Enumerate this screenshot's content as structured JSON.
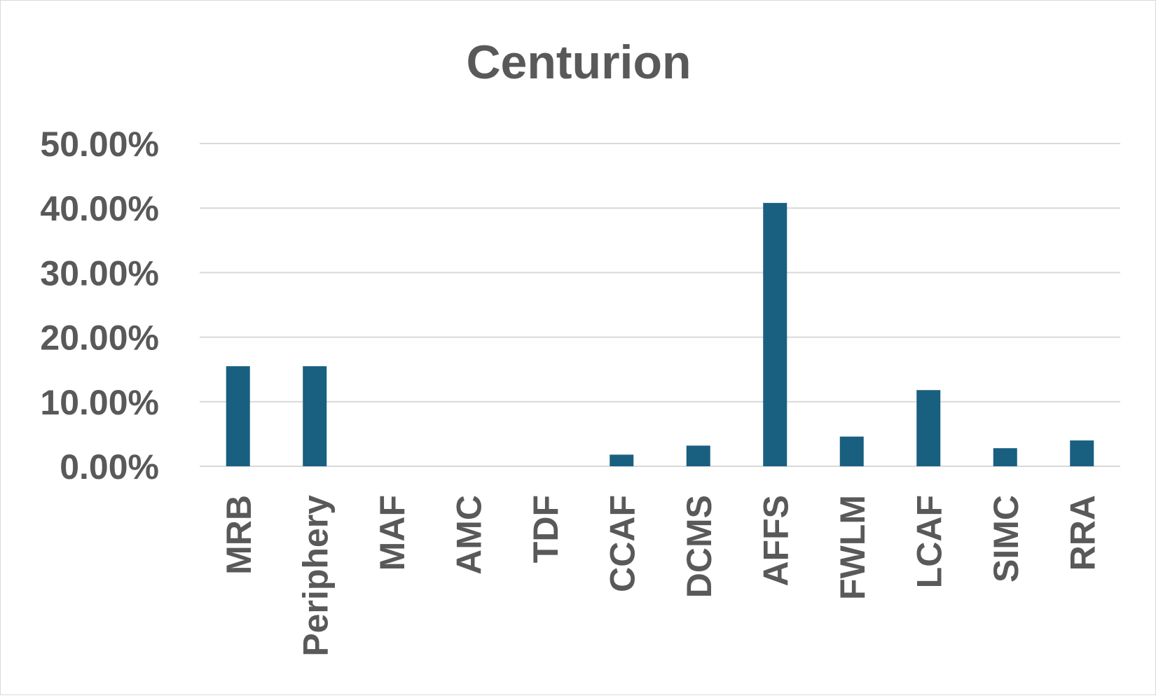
{
  "chart_data": {
    "type": "bar",
    "title": "Centurion",
    "xlabel": "",
    "ylabel": "",
    "categories": [
      "MRB",
      "Periphery",
      "MAF",
      "AMC",
      "TDF",
      "CCAF",
      "DCMS",
      "AFFS",
      "FWLM",
      "LCAF",
      "SIMC",
      "RRA"
    ],
    "values": [
      15.5,
      15.5,
      0,
      0,
      0,
      1.8,
      3.2,
      40.8,
      4.6,
      11.8,
      2.8,
      4.0
    ],
    "ylim": [
      0,
      50
    ],
    "yticks": [
      0,
      10,
      20,
      30,
      40,
      50
    ],
    "ytick_labels": [
      "0.00%",
      "10.00%",
      "20.00%",
      "30.00%",
      "40.00%",
      "50.00%"
    ],
    "grid": true,
    "legend": "none",
    "bar_color": "#195f80"
  }
}
